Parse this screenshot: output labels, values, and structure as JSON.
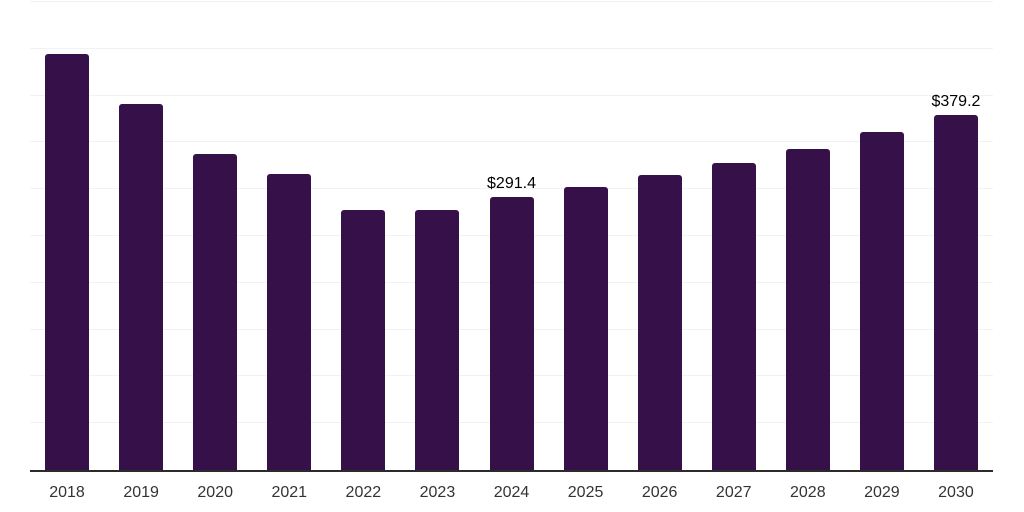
{
  "chart_data": {
    "type": "bar",
    "title": "",
    "xlabel": "",
    "ylabel": "",
    "categories": [
      "2018",
      "2019",
      "2020",
      "2021",
      "2022",
      "2023",
      "2024",
      "2025",
      "2026",
      "2027",
      "2028",
      "2029",
      "2030"
    ],
    "values": [
      444.9,
      391.0,
      337.7,
      316.4,
      277.3,
      278.0,
      291.4,
      302.8,
      315.3,
      327.6,
      343.0,
      360.7,
      379.2
    ],
    "data_labels": [
      {
        "category": "2024",
        "text": "$291.4"
      },
      {
        "category": "2030",
        "text": "$379.2"
      }
    ],
    "ylim": [
      0,
      500
    ],
    "gridline_step": 50,
    "grid": "horizontal",
    "legend": "none",
    "colors": {
      "bar": "#361149",
      "axis_line": "#2b2b2b",
      "gridline": "#f2f2f2",
      "tick_label": "#333333",
      "data_label": "#000000",
      "background": "#ffffff"
    }
  }
}
